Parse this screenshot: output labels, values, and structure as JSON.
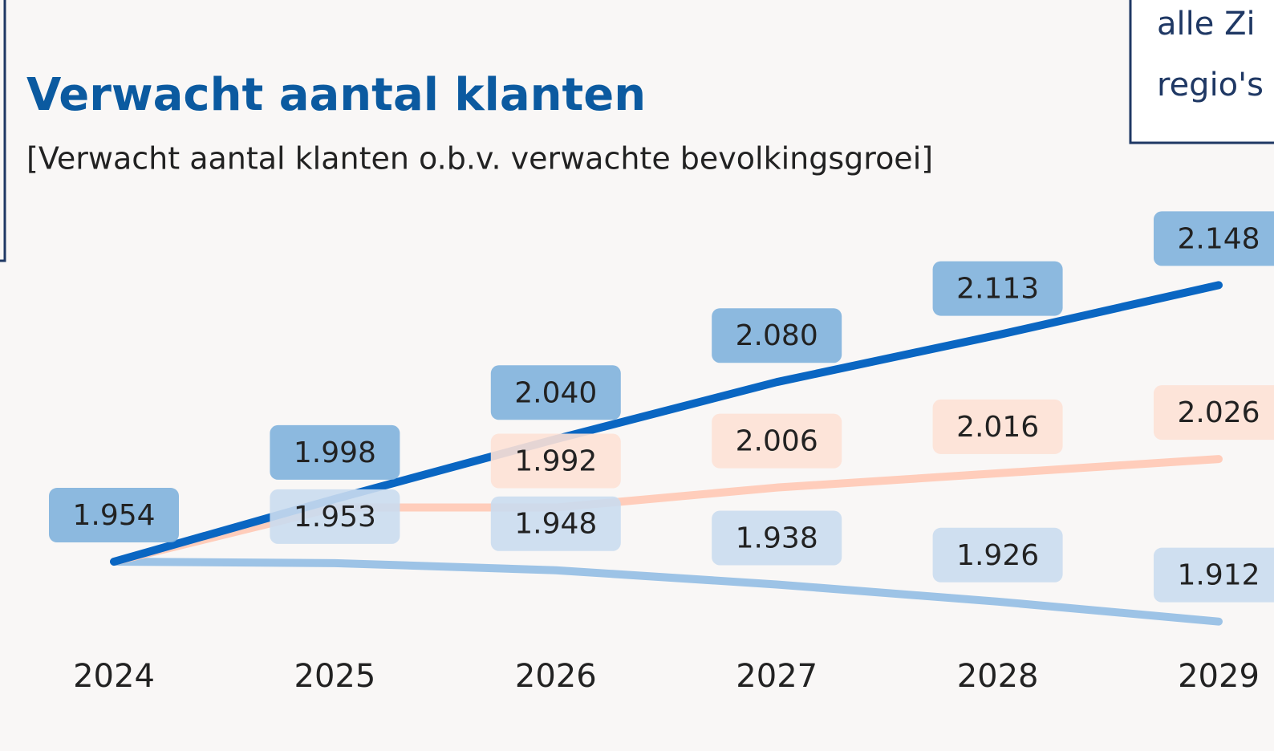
{
  "chart_data": {
    "type": "line",
    "title": "Verwacht aantal klanten",
    "subtitle": "[Verwacht aantal klanten o.b.v. verwachte bevolkingsgroei]",
    "categories": [
      "2024",
      "2025",
      "2026",
      "2027",
      "2028",
      "2029"
    ],
    "ylim": [
      1900,
      2200
    ],
    "series": [
      {
        "color": "#0a66c2",
        "label_color": "#80b1dd",
        "values": [
          1954,
          1998,
          2040,
          2080,
          2113,
          2148
        ],
        "value_labels": [
          "1.954",
          "1.998",
          "2.040",
          "2.080",
          "2.113",
          "2.148"
        ]
      },
      {
        "color": "#ffcdbb",
        "label_color": "#fde1d6",
        "values": [
          1954,
          1992,
          1992,
          2006,
          2016,
          2026
        ],
        "value_labels": [
          null,
          null,
          "1.992",
          "2.006",
          "2.016",
          "2.026"
        ]
      },
      {
        "color": "#9dc3e6",
        "label_color": "#cadcf0",
        "values": [
          1954,
          1953,
          1948,
          1938,
          1926,
          1912
        ],
        "value_labels": [
          null,
          "1.953",
          "1.948",
          "1.938",
          "1.926",
          "1.912"
        ]
      }
    ]
  },
  "panel": {
    "lines": [
      "alle Zi",
      "regio's"
    ]
  }
}
